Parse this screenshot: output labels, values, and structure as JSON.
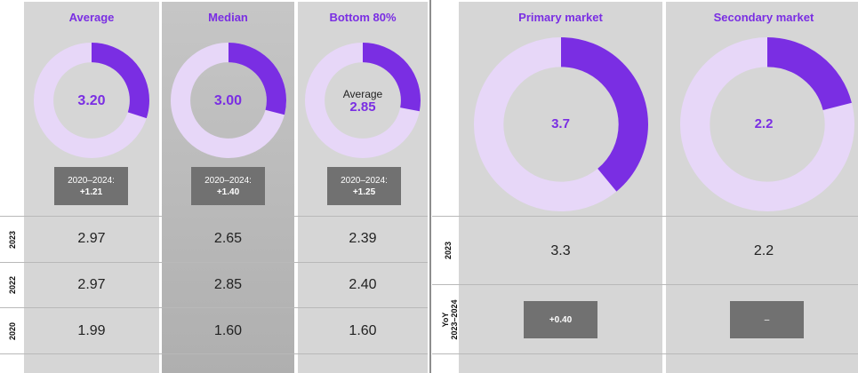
{
  "colors": {
    "accent": "#7a2ee3",
    "track": "#e7d7f8",
    "badge": "#717171"
  },
  "chart_data": [
    {
      "type": "pie",
      "title": "Average",
      "center_value": "3.20",
      "center_label": "",
      "fill_fraction": 0.3,
      "badge": {
        "line1": "2020–2024:",
        "line2": "+1.21"
      },
      "rows": {
        "2023": "2.97",
        "2022": "2.97",
        "2020": "1.99"
      }
    },
    {
      "type": "pie",
      "title": "Median",
      "center_value": "3.00",
      "center_label": "",
      "fill_fraction": 0.29,
      "badge": {
        "line1": "2020–2024:",
        "line2": "+1.40"
      },
      "rows": {
        "2023": "2.65",
        "2022": "2.85",
        "2020": "1.60"
      }
    },
    {
      "type": "pie",
      "title": "Bottom 80%",
      "center_value": "2.85",
      "center_label": "Average",
      "fill_fraction": 0.28,
      "badge": {
        "line1": "2020–2024:",
        "line2": "+1.25"
      },
      "rows": {
        "2023": "2.39",
        "2022": "2.40",
        "2020": "1.60"
      }
    },
    {
      "type": "pie",
      "title": "Primary market",
      "center_value": "3.7",
      "center_label": "",
      "fill_fraction": 0.39,
      "rows": {
        "2023": "3.3",
        "YoY 2023–2024": "+0.40"
      }
    },
    {
      "type": "pie",
      "title": "Secondary market",
      "center_value": "2.2",
      "center_label": "",
      "fill_fraction": 0.21,
      "rows": {
        "2023": "2.2",
        "YoY 2023–2024": "–"
      }
    }
  ],
  "row_labels_left": [
    "2023",
    "2022",
    "2020"
  ],
  "row_labels_right": [
    "2023",
    "YoY\n2023–2024"
  ]
}
